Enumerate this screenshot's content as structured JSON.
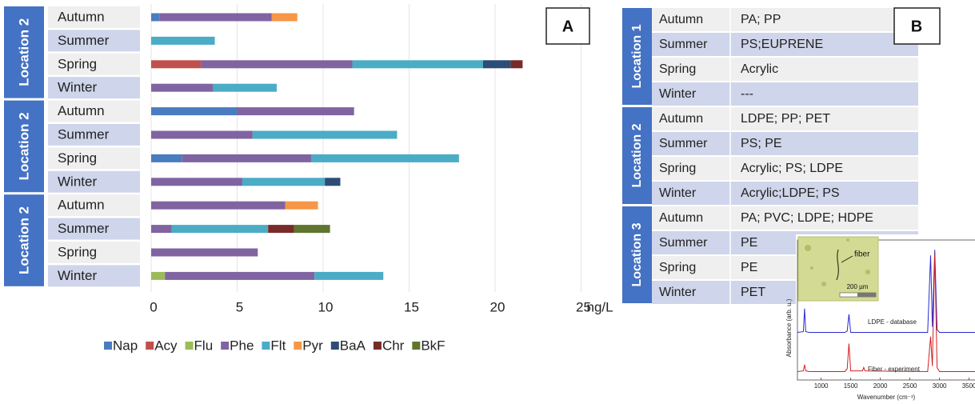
{
  "chart_data": [
    {
      "type": "bar",
      "orientation": "horizontal",
      "stacked": true,
      "panel_label": "A",
      "groups": [
        "Location 2",
        "Location 2",
        "Location 2"
      ],
      "categories": [
        "Autumn",
        "Summer",
        "Spring",
        "Winter",
        "Autumn",
        "Summer",
        "Spring",
        "Winter",
        "Autumn",
        "Summer",
        "Spring",
        "Winter"
      ],
      "xlabel": "ng/L",
      "xlim": [
        0,
        25
      ],
      "xticks": [
        0,
        5,
        10,
        15,
        20,
        25
      ],
      "grid": true,
      "legend": "bottom",
      "series": [
        {
          "name": "Nap",
          "color": "#4a7cc0",
          "values": [
            0.5,
            0,
            0,
            0,
            5.0,
            0,
            1.8,
            0,
            0,
            0,
            0,
            0
          ]
        },
        {
          "name": "Acy",
          "color": "#c0504d",
          "values": [
            0,
            0,
            2.9,
            0,
            0,
            0,
            0,
            0,
            0,
            0,
            0,
            0
          ]
        },
        {
          "name": "Flu",
          "color": "#9bbb59",
          "values": [
            0,
            0,
            0,
            0,
            0,
            0,
            0,
            0,
            0,
            0,
            0,
            0.8
          ]
        },
        {
          "name": "Phe",
          "color": "#8064a2",
          "values": [
            6.5,
            0,
            8.8,
            3.6,
            6.8,
            5.9,
            7.5,
            5.3,
            7.8,
            1.2,
            6.2,
            8.7
          ]
        },
        {
          "name": "Flt",
          "color": "#4bacc6",
          "values": [
            0,
            3.7,
            7.6,
            3.7,
            0,
            8.4,
            8.6,
            4.8,
            0,
            5.6,
            0,
            4.0
          ]
        },
        {
          "name": "Pyr",
          "color": "#f79646",
          "values": [
            1.5,
            0,
            0,
            0,
            0,
            0,
            0,
            0,
            1.9,
            0,
            0,
            0
          ]
        },
        {
          "name": "BaA",
          "color": "#2c4d75",
          "values": [
            0,
            0,
            1.6,
            0,
            0,
            0,
            0,
            0.9,
            0,
            0,
            0,
            0
          ]
        },
        {
          "name": "Chr",
          "color": "#772c2a",
          "values": [
            0,
            0,
            0.7,
            0,
            0,
            0,
            0,
            0,
            0,
            1.5,
            0,
            0
          ]
        },
        {
          "name": "BkF",
          "color": "#5f7530",
          "values": [
            0,
            0,
            0,
            0,
            0,
            0,
            0,
            0,
            0,
            2.1,
            0,
            0
          ]
        }
      ]
    },
    {
      "type": "line",
      "xlabel": "Wavenumber (cm⁻¹)",
      "ylabel": "Absorbance (arb. u.)",
      "annotations": [
        "fiber",
        "200 µm"
      ],
      "xlim": [
        600,
        3600
      ],
      "xticks": [
        1000,
        1500,
        2000,
        2500,
        3000,
        3500
      ],
      "ylim": [
        0,
        10
      ],
      "x": [
        600,
        700,
        720,
        740,
        800,
        1400,
        1440,
        1470,
        1500,
        1700,
        1720,
        1740,
        2800,
        2850,
        2880,
        2920,
        2960,
        3000,
        3600
      ],
      "series": [
        {
          "name": "LDPE - database",
          "color": "#2b2bd0",
          "values": [
            3.4,
            3.45,
            5.1,
            3.45,
            3.4,
            3.4,
            3.5,
            4.7,
            3.4,
            3.4,
            3.4,
            3.4,
            3.4,
            8.9,
            3.8,
            9.3,
            3.6,
            3.4,
            3.4
          ]
        },
        {
          "name": "Fiber - experiment",
          "color": "#d42020",
          "values": [
            0.6,
            0.65,
            1.1,
            0.65,
            0.6,
            0.6,
            0.8,
            2.6,
            0.65,
            0.65,
            0.9,
            0.65,
            0.6,
            3.1,
            1.0,
            9.0,
            0.9,
            0.6,
            0.6
          ]
        }
      ]
    }
  ],
  "table": {
    "panel_label": "B",
    "groups": [
      {
        "label": "Location 1",
        "rows": [
          [
            "Autumn",
            "PA; PP"
          ],
          [
            "Summer",
            "PS;EUPRENE"
          ],
          [
            "Spring",
            "Acrylic"
          ],
          [
            "Winter",
            "---"
          ]
        ]
      },
      {
        "label": "Location 2",
        "rows": [
          [
            "Autumn",
            "LDPE; PP; PET"
          ],
          [
            "Summer",
            "PS; PE"
          ],
          [
            "Spring",
            "Acrylic; PS; LDPE"
          ],
          [
            "Winter",
            "Acrylic;LDPE; PS"
          ]
        ]
      },
      {
        "label": "Location 3",
        "rows": [
          [
            "Autumn",
            "PA; PVC; LDPE; HDPE"
          ],
          [
            "Summer",
            "PE"
          ],
          [
            "Spring",
            "PE"
          ],
          [
            "Winter",
            "PET"
          ]
        ]
      }
    ]
  }
}
